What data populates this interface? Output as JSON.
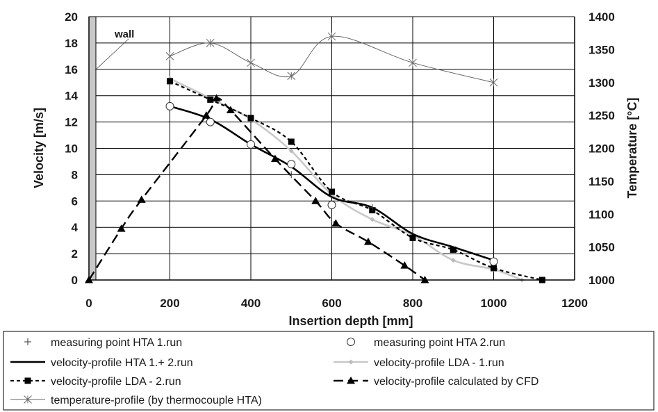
{
  "chart_data": {
    "type": "line",
    "title": "",
    "xlabel": "Insertion depth [mm]",
    "ylabel": "Velocity [m/s]",
    "y2label": "Temperature [°C]",
    "xlim": [
      0,
      1200
    ],
    "ylim": [
      0,
      20
    ],
    "y2lim": [
      1000,
      1400
    ],
    "xticks": [
      "0",
      "200",
      "400",
      "600",
      "800",
      "1000",
      "1200"
    ],
    "yticks": [
      "0",
      "2",
      "4",
      "6",
      "8",
      "10",
      "12",
      "14",
      "16",
      "18",
      "20"
    ],
    "y2ticks": [
      "1000",
      "1050",
      "1100",
      "1150",
      "1200",
      "1250",
      "1300",
      "1350",
      "1400"
    ],
    "grid": true,
    "legend_position": "bottom",
    "annotation": "wall",
    "wall_region": [
      0,
      20
    ],
    "series": [
      {
        "name": "measuring point HTA 1.run",
        "axis": "left",
        "style": "markers",
        "marker": "plus",
        "color": "#333333",
        "x": [
          500,
          700
        ],
        "y": [
          8.0,
          5.5
        ]
      },
      {
        "name": "measuring point HTA 2.run",
        "axis": "left",
        "style": "markers",
        "marker": "circle-open",
        "color": "#333333",
        "x": [
          200,
          300,
          400,
          500,
          600,
          1000
        ],
        "y": [
          13.2,
          12.0,
          10.3,
          8.8,
          5.7,
          1.4
        ]
      },
      {
        "name": "velocity-profile HTA 1.+ 2.run",
        "axis": "left",
        "style": "line",
        "dash": "solid",
        "color": "#000000",
        "x": [
          200,
          300,
          400,
          500,
          600,
          700,
          800,
          900,
          1000
        ],
        "y": [
          13.2,
          12.2,
          10.3,
          8.6,
          6.3,
          5.5,
          3.5,
          2.5,
          1.5
        ]
      },
      {
        "name": "velocity-profile LDA - 1.run",
        "axis": "left",
        "style": "line",
        "dash": "solid",
        "marker": "diamond",
        "color": "#c8c8c8",
        "x": [
          200,
          300,
          400,
          500,
          600,
          700,
          800,
          900,
          1000,
          1070
        ],
        "y": [
          15.3,
          13.8,
          12.2,
          9.8,
          6.5,
          4.6,
          3.4,
          1.5,
          0.8,
          0.0
        ]
      },
      {
        "name": "velocity-profile LDA - 2.run",
        "axis": "left",
        "style": "line",
        "dash": "short-dash",
        "marker": "square",
        "color": "#000000",
        "x": [
          200,
          300,
          400,
          500,
          600,
          700,
          800,
          900,
          1000,
          1120
        ],
        "y": [
          15.1,
          13.7,
          12.3,
          10.5,
          6.7,
          5.3,
          3.2,
          2.3,
          0.9,
          0.0
        ]
      },
      {
        "name": "velocity-profile calculated by CFD",
        "axis": "left",
        "style": "line",
        "dash": "long-dash",
        "marker": "triangle",
        "color": "#000000",
        "x": [
          0,
          80,
          130,
          290,
          315,
          350,
          460,
          560,
          610,
          690,
          780,
          830
        ],
        "y": [
          0.0,
          3.9,
          6.1,
          12.5,
          13.8,
          12.9,
          9.2,
          6.0,
          4.3,
          2.9,
          1.1,
          0.0
        ]
      },
      {
        "name": "temperature-profile (by thermocouple HTA)",
        "axis": "right",
        "style": "line",
        "dash": "solid",
        "marker": "asterisk",
        "color": "#666666",
        "x": [
          200,
          300,
          400,
          500,
          600,
          800,
          1000
        ],
        "y": [
          1340,
          1360,
          1330,
          1310,
          1370,
          1330,
          1300
        ]
      }
    ]
  }
}
